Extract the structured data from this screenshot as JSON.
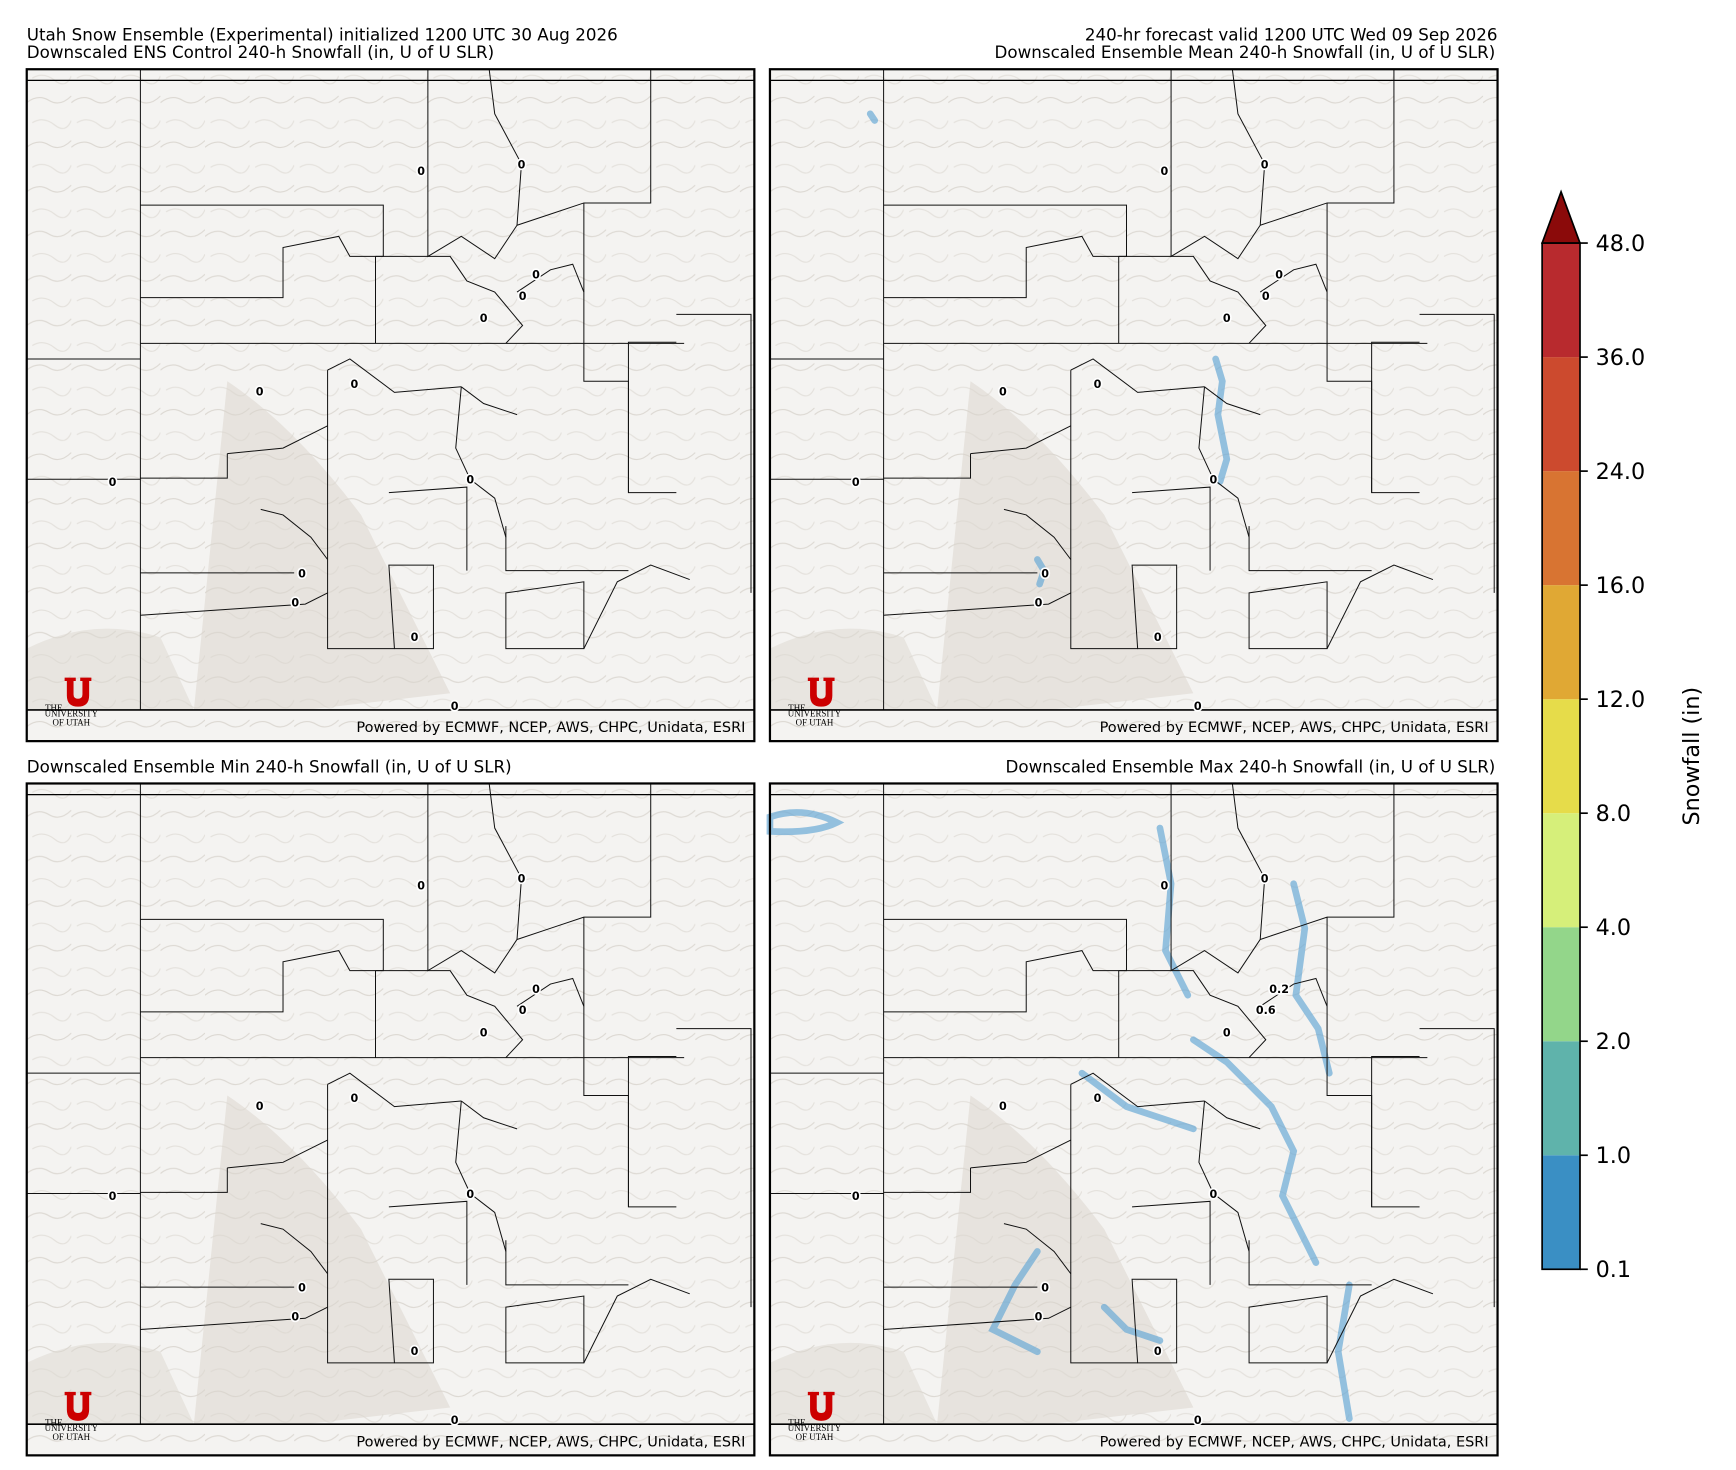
{
  "header": {
    "left_line1": "Utah Snow Ensemble (Experimental) initialized 1200 UTC 30 Aug 2026",
    "right_line1": "240-hr forecast valid 1200 UTC Wed 09 Sep 2026"
  },
  "panels": [
    {
      "title": "Downscaled ENS Control 240-h Snowfall (in, U of U SLR)",
      "credit": "Powered by ECMWF, NCEP, AWS, CHPC, Unidata, ESRI",
      "logo": [
        "THE",
        "UNIVERSITY",
        "OF UTAH"
      ],
      "point_labels": [
        0,
        0,
        0,
        0,
        0,
        0,
        0,
        0,
        0,
        0,
        0,
        0,
        0
      ]
    },
    {
      "title": "Downscaled Ensemble Mean 240-h Snowfall (in, U of U SLR)",
      "credit": "Powered by ECMWF, NCEP, AWS, CHPC, Unidata, ESRI",
      "logo": [
        "THE",
        "UNIVERSITY",
        "OF UTAH"
      ],
      "point_labels": [
        0,
        0,
        0,
        0,
        0,
        0,
        0,
        0,
        0,
        0,
        0,
        0,
        0
      ]
    },
    {
      "title": "Downscaled Ensemble Min 240-h Snowfall (in, U of U SLR)",
      "credit": "Powered by ECMWF, NCEP, AWS, CHPC, Unidata, ESRI",
      "logo": [
        "THE",
        "UNIVERSITY",
        "OF UTAH"
      ],
      "point_labels": [
        0,
        0,
        0,
        0,
        0,
        0,
        0,
        0,
        0,
        0,
        0,
        0,
        0
      ]
    },
    {
      "title": "Downscaled Ensemble Max 240-h Snowfall (in, U of U SLR)",
      "credit": "Powered by ECMWF, NCEP, AWS, CHPC, Unidata, ESRI",
      "logo": [
        "THE",
        "UNIVERSITY",
        "OF UTAH"
      ],
      "point_labels": [
        0,
        0,
        0.2,
        0.6,
        0,
        0,
        0,
        0,
        0,
        0,
        0,
        0,
        0
      ]
    }
  ],
  "colorbar": {
    "label": "Snowfall (in)",
    "ticks": [
      {
        "value": 0.1,
        "label": "0.1"
      },
      {
        "value": 1,
        "label": "1.0"
      },
      {
        "value": 2,
        "label": "2.0"
      },
      {
        "value": 4,
        "label": "4.0"
      },
      {
        "value": 8,
        "label": "8.0"
      },
      {
        "value": 12,
        "label": "12.0"
      },
      {
        "value": 16,
        "label": "16.0"
      },
      {
        "value": 24,
        "label": "24.0"
      },
      {
        "value": 36,
        "label": "36.0"
      },
      {
        "value": 48,
        "label": "48.0"
      }
    ],
    "colors": [
      "#3a8fc4",
      "#5fb3ab",
      "#93d68a",
      "#d6ef7a",
      "#e6dc4a",
      "#e0a834",
      "#d87432",
      "#cc4a2e",
      "#b82a2e"
    ],
    "extend_color": "#8b0a0a"
  }
}
